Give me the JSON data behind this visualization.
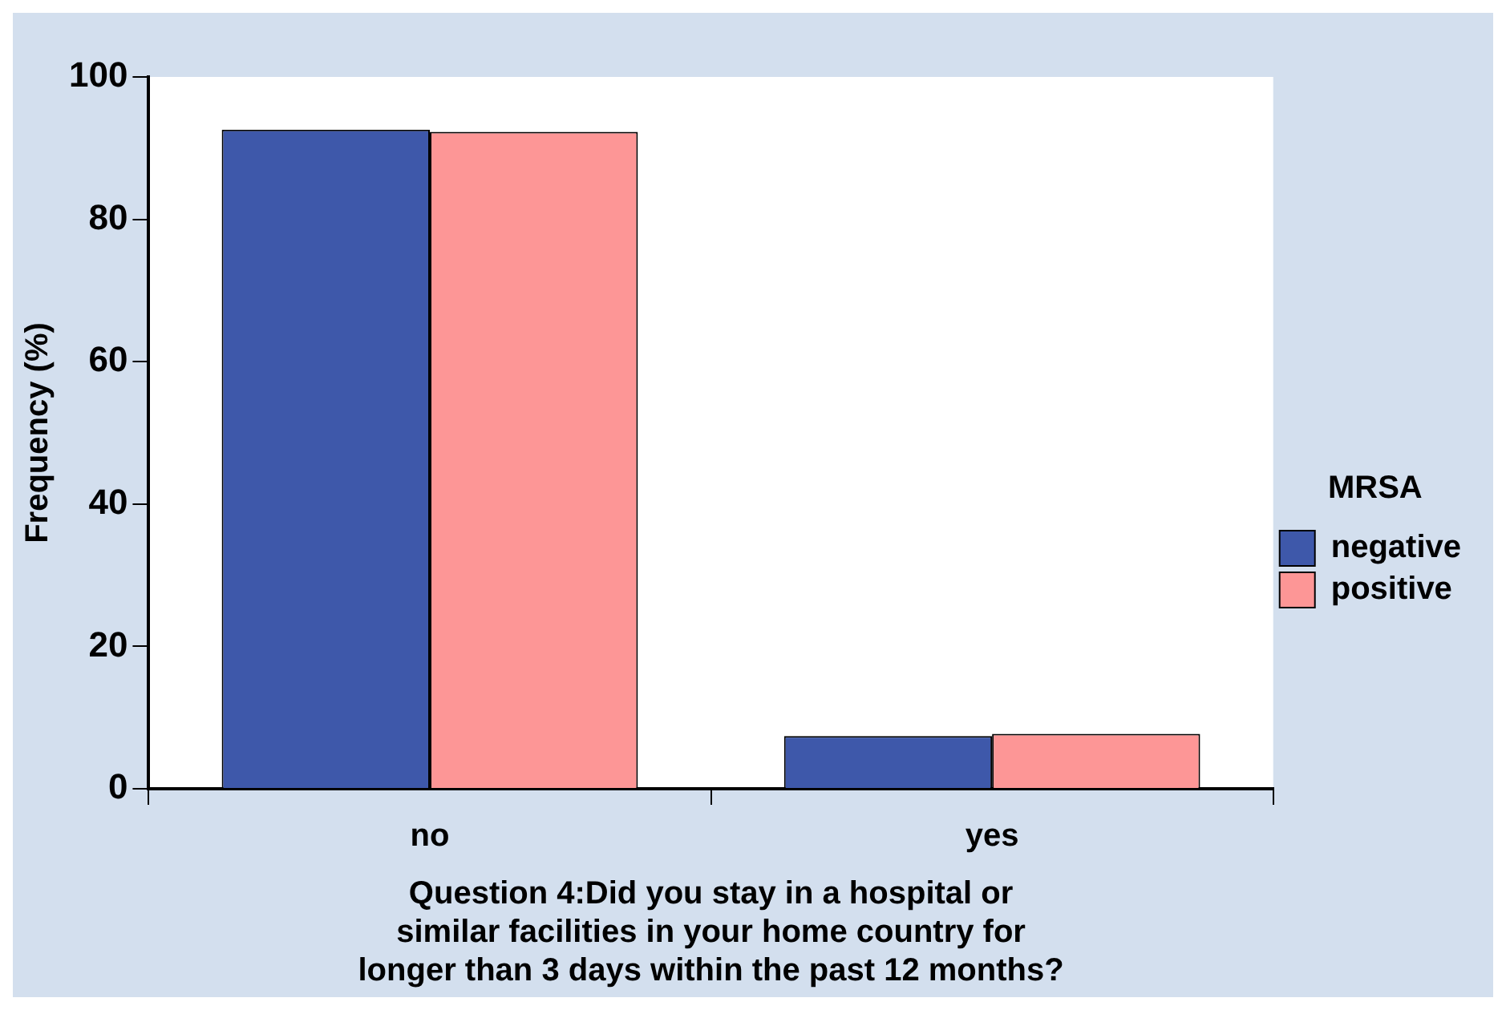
{
  "chart_data": {
    "type": "bar",
    "xlabel": "Question 4:Did you stay in a hospital or similar facilities in your home country for longer than 3 days within the past 12 months?",
    "ylabel": "Frequency (%)",
    "legend_title": "MRSA",
    "categories": [
      "no",
      "yes"
    ],
    "series": [
      {
        "name": "negative",
        "color": "#3e58aa",
        "values": [
          92.6,
          7.4
        ]
      },
      {
        "name": "positive",
        "color": "#fd9696",
        "values": [
          92.3,
          7.7
        ]
      }
    ],
    "ylim": [
      0,
      100
    ],
    "yticks": [
      0,
      20,
      40,
      60,
      80,
      100
    ],
    "grid": false,
    "legend": "right"
  }
}
